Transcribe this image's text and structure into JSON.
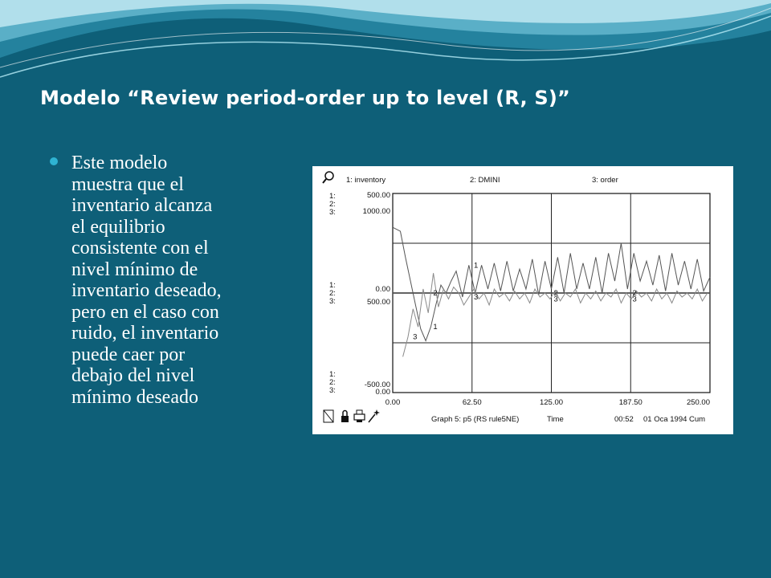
{
  "slide": {
    "title": "Modelo “Review period-order up to level (R, S)”",
    "bullet": "Este modelo\nmuestra que el\ninventario alcanza\nel equilibrio\nconsistente con el\nnivel mínimo de\ninventario deseado,\npero en el caso con\nruido, el inventario\npuede caer por\ndebajo del nivel\nmínimo deseado"
  },
  "colors": {
    "background": "#0e5f78",
    "title": "#ffffff",
    "bullet_dot": "#2fb3d2",
    "plot_line": "#555555"
  },
  "icons": [
    "magnifier-icon",
    "page-icon",
    "lock-icon",
    "printer-icon",
    "wand-icon"
  ],
  "chart_data": {
    "type": "line",
    "window_labels": {
      "series_header": [
        "1: inventory",
        "2: DMINI",
        "3: order"
      ],
      "footer_graph": "Graph 5: p5 (RS rule5NE)",
      "footer_x": "Time",
      "footer_clock": "00:52",
      "footer_date": "01 Oca 1994 Cum"
    },
    "axis_keys": {
      "top": [
        "1:",
        "2:",
        "3:"
      ],
      "middle": [
        "1:",
        "2:",
        "3:"
      ],
      "bottom": [
        "1:",
        "2:",
        "3:"
      ]
    },
    "y_tick_labels": {
      "top": [
        "500.00",
        "1000.00"
      ],
      "middle": [
        "0.00",
        "500.00"
      ],
      "bottom": [
        "-500.00",
        "0.00"
      ]
    },
    "x_tick_labels": [
      "0.00",
      "62.50",
      "125.00",
      "187.50",
      "250.00"
    ],
    "xlim": [
      0,
      250
    ],
    "axes": {
      "inventory_and_dmini": [
        -500,
        500
      ],
      "order": [
        0,
        1000
      ]
    },
    "series_markers": [
      "1",
      "2",
      "3"
    ],
    "series": [
      {
        "name": "1: inventory",
        "axis": "inventory_and_dmini",
        "x": [
          0,
          6,
          10,
          14,
          18,
          22,
          26,
          30,
          34,
          38,
          42,
          46,
          50,
          55,
          60,
          65,
          70,
          75,
          80,
          85,
          90,
          95,
          100,
          105,
          110,
          115,
          120,
          125,
          130,
          135,
          140,
          145,
          150,
          155,
          160,
          165,
          170,
          175,
          180,
          185,
          190,
          195,
          200,
          205,
          210,
          215,
          220,
          225,
          230,
          235,
          240,
          245,
          250
        ],
        "y": [
          330,
          310,
          180,
          60,
          -60,
          -180,
          -240,
          -170,
          -60,
          40,
          0,
          60,
          110,
          -20,
          140,
          0,
          140,
          20,
          150,
          10,
          160,
          10,
          120,
          20,
          170,
          -10,
          160,
          20,
          180,
          0,
          200,
          20,
          150,
          20,
          180,
          0,
          200,
          60,
          250,
          20,
          200,
          60,
          160,
          40,
          190,
          10,
          200,
          40,
          160,
          20,
          170,
          10,
          80
        ]
      },
      {
        "name": "2: DMINI",
        "axis": "inventory_and_dmini",
        "x": [
          0,
          250
        ],
        "y": [
          0,
          0
        ]
      },
      {
        "name": "3: order",
        "axis": "order",
        "x": [
          8,
          12,
          16,
          20,
          24,
          28,
          32,
          36,
          40,
          44,
          48,
          52,
          56,
          60,
          64,
          68,
          72,
          76,
          80,
          84,
          88,
          92,
          96,
          100,
          104,
          108,
          112,
          116,
          120,
          124,
          128,
          132,
          136,
          140,
          144,
          148,
          152,
          156,
          160,
          164,
          168,
          172,
          176,
          180,
          184,
          188,
          192,
          196,
          200,
          204,
          208,
          212,
          216,
          220,
          224,
          228,
          232,
          236,
          240,
          244,
          248
        ],
        "y": [
          180,
          280,
          420,
          330,
          520,
          400,
          600,
          430,
          520,
          470,
          530,
          500,
          440,
          480,
          520,
          470,
          500,
          440,
          520,
          480,
          500,
          460,
          510,
          470,
          500,
          450,
          520,
          480,
          500,
          470,
          510,
          460,
          500,
          480,
          520,
          450,
          500,
          470,
          510,
          460,
          500,
          480,
          520,
          450,
          500,
          470,
          510,
          480,
          500,
          460,
          520,
          470,
          500,
          450,
          510,
          480,
          500,
          470,
          520,
          460,
          500
        ]
      }
    ],
    "grid": true,
    "legend": "top"
  }
}
